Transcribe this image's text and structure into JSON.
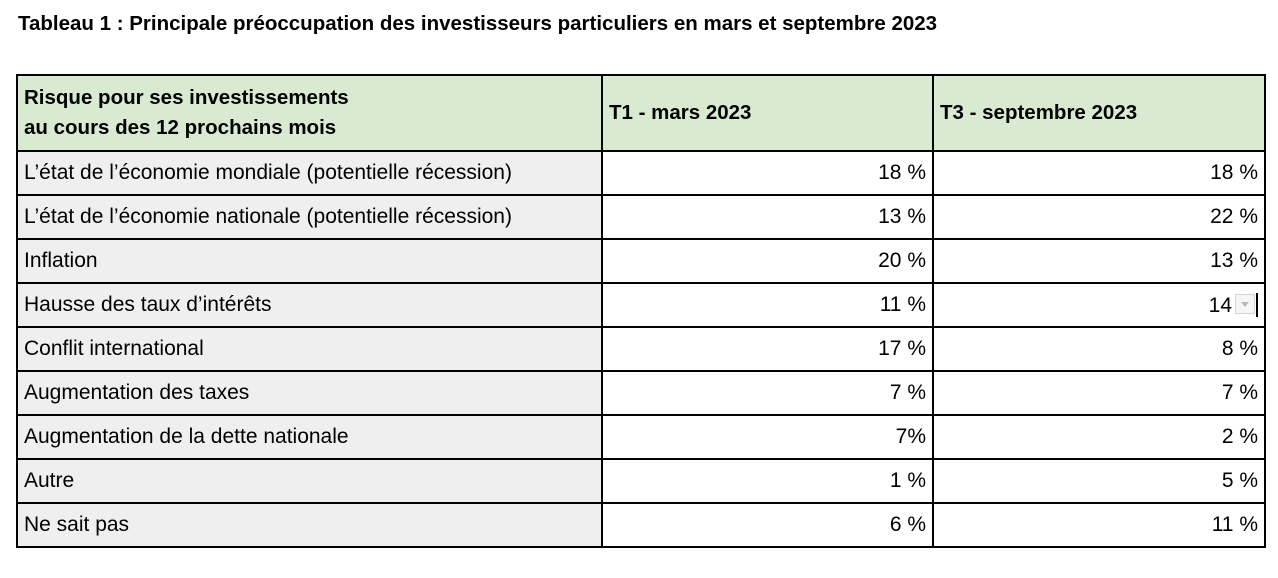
{
  "title": "Tableau 1 : Principale préoccupation des investisseurs particuliers en mars et septembre 2023",
  "table": {
    "header": {
      "col1_line1": "Risque pour ses investissements",
      "col1_line2": "au cours des 12 prochains mois",
      "col2": "T1 - mars 2023",
      "col3": "T3 - septembre 2023"
    },
    "rows": [
      {
        "label": "L’état de l’économie mondiale (potentielle récession)",
        "t1": "18 %",
        "t3": "18 %"
      },
      {
        "label": "L’état de l’économie nationale (potentielle récession)",
        "t1": "13 %",
        "t3": "22 %"
      },
      {
        "label": "Inflation",
        "t1": "20 %",
        "t3": "13 %"
      },
      {
        "label": "Hausse des taux d’intérêts",
        "t1": "11 %",
        "t3": "14"
      },
      {
        "label": "Conflit international",
        "t1": "17 %",
        "t3": "8 %"
      },
      {
        "label": "Augmentation des taxes",
        "t1": "7 %",
        "t3": "7 %"
      },
      {
        "label": "Augmentation de la dette nationale",
        "t1": "7%",
        "t3": "2 %"
      },
      {
        "label": "Autre",
        "t1": "1 %",
        "t3": "5 %"
      },
      {
        "label": "Ne sait pas",
        "t1": "6 %",
        "t3": "11 %"
      }
    ],
    "colors": {
      "header_bg": "#d9ead3",
      "label_bg": "#efefef"
    }
  }
}
